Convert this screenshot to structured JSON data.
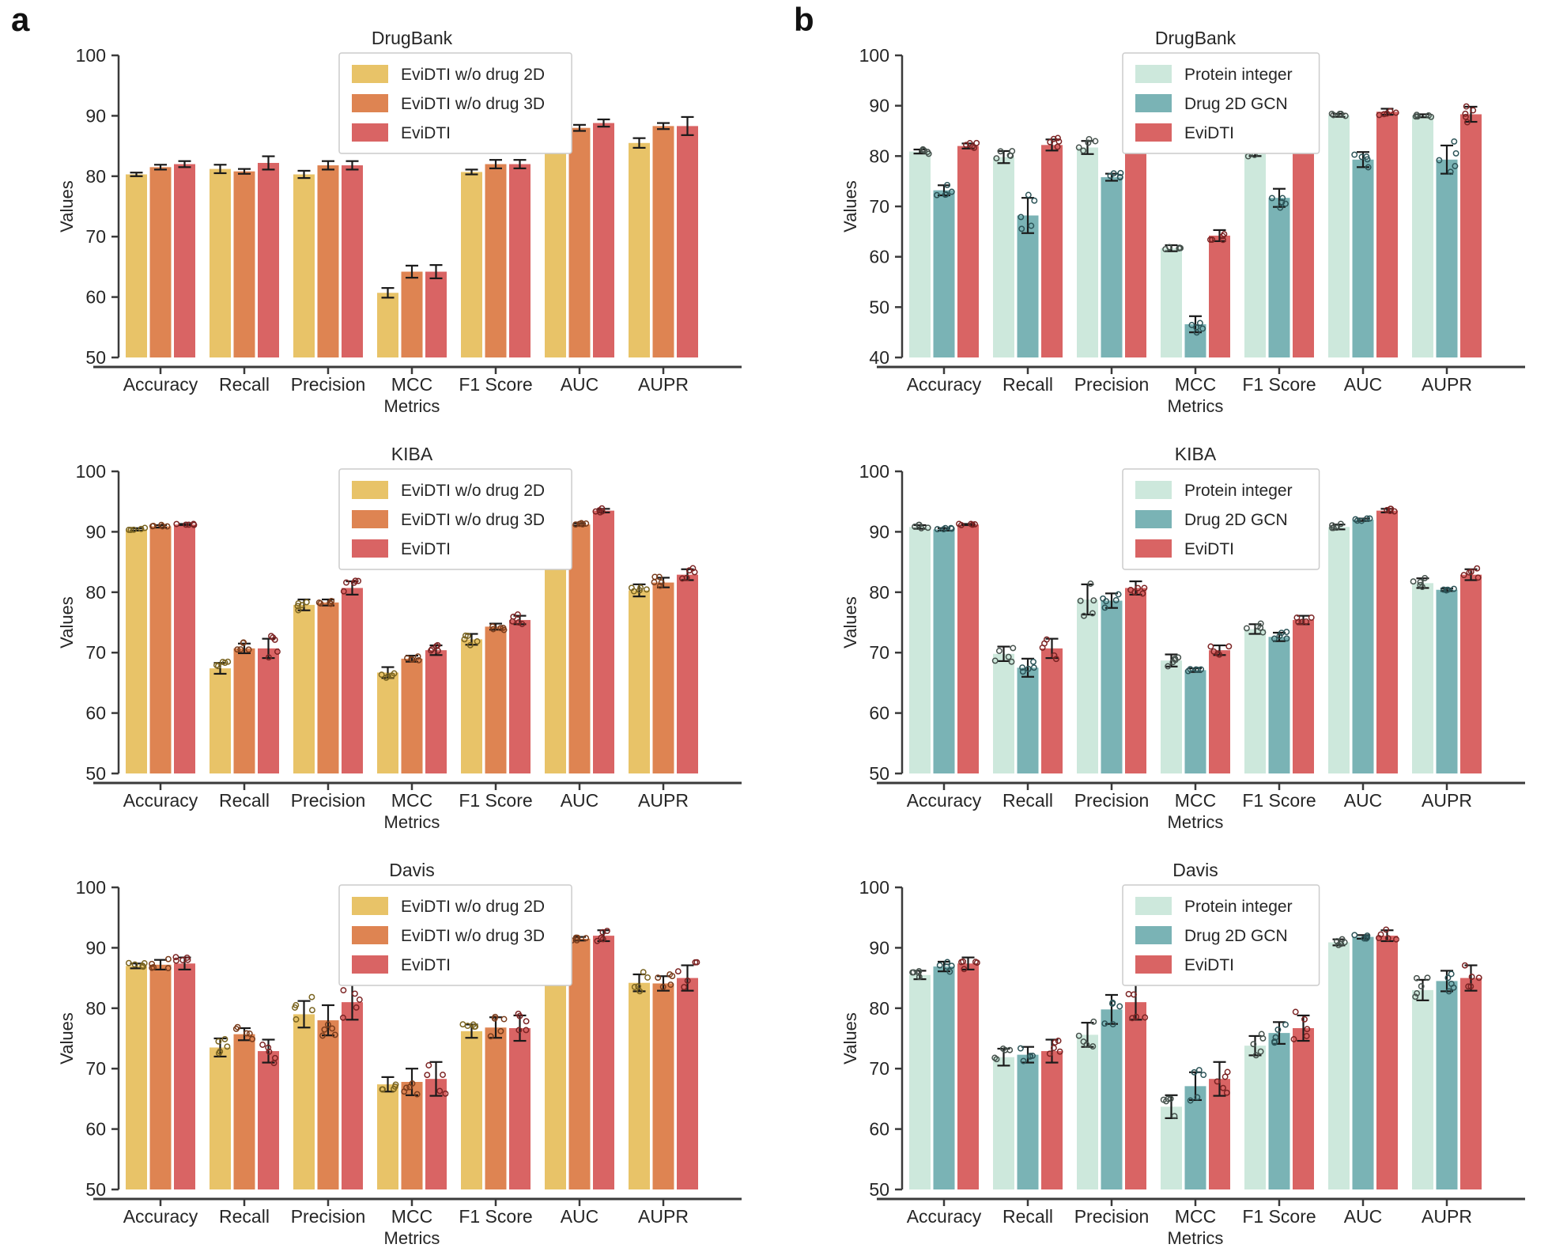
{
  "panels": [
    {
      "label": "a"
    },
    {
      "label": "b"
    }
  ],
  "colors": {
    "background": "#ffffff",
    "axis": "#3a3a3a",
    "errorbar": "#1a1a1a",
    "legend_border": "#cccccc",
    "text": "#262626",
    "panel_a_series": [
      "#E8C368",
      "#DE8452",
      "#D96464"
    ],
    "panel_b_series": [
      "#CDE8DC",
      "#7AB3B5",
      "#D96464"
    ]
  },
  "chart_data": [
    {
      "id": "a-drugbank",
      "panel": "a",
      "type": "bar",
      "title": "DrugBank",
      "xlabel": "Metrics",
      "ylabel": "Values",
      "ylim": [
        50,
        100
      ],
      "yticks": [
        50,
        60,
        70,
        80,
        90,
        100
      ],
      "grid": false,
      "legend_position": "upper center",
      "show_points": false,
      "categories": [
        "Accuracy",
        "Recall",
        "Precision",
        "MCC",
        "F1 Score",
        "AUC",
        "AUPR"
      ],
      "series": [
        {
          "name": "EviDTI w/o drug 2D",
          "color": "#E8C368",
          "point_color": "#7a6420",
          "values": [
            80.3,
            81.2,
            80.3,
            60.7,
            80.7,
            86.8,
            85.5
          ],
          "errors": [
            0.3,
            0.7,
            0.6,
            0.8,
            0.4,
            0.5,
            0.8
          ]
        },
        {
          "name": "EviDTI w/o drug 3D",
          "color": "#DE8452",
          "point_color": "#7a3d1d",
          "values": [
            81.5,
            80.8,
            81.8,
            64.2,
            82.0,
            88.0,
            88.3
          ],
          "errors": [
            0.4,
            0.4,
            0.7,
            1.0,
            0.7,
            0.5,
            0.5
          ]
        },
        {
          "name": "EviDTI",
          "color": "#D96464",
          "point_color": "#7c2424",
          "values": [
            82.0,
            82.2,
            81.8,
            64.2,
            82.0,
            88.8,
            88.3
          ],
          "errors": [
            0.5,
            1.1,
            0.7,
            1.1,
            0.7,
            0.6,
            1.5
          ]
        }
      ]
    },
    {
      "id": "b-drugbank",
      "panel": "b",
      "type": "bar",
      "title": "DrugBank",
      "xlabel": "Metrics",
      "ylabel": "Values",
      "ylim": [
        40,
        100
      ],
      "yticks": [
        40,
        50,
        60,
        70,
        80,
        90,
        100
      ],
      "grid": false,
      "legend_position": "upper center",
      "show_points": true,
      "categories": [
        "Accuracy",
        "Recall",
        "Precision",
        "MCC",
        "F1 Score",
        "AUC",
        "AUPR"
      ],
      "series": [
        {
          "name": "Protein integer",
          "color": "#CDE8DC",
          "point_color": "#46524d",
          "values": [
            80.9,
            79.8,
            81.7,
            61.7,
            80.7,
            88.1,
            88.0
          ],
          "errors": [
            0.4,
            1.2,
            1.3,
            0.6,
            0.7,
            0.3,
            0.3
          ]
        },
        {
          "name": "Drug 2D GCN",
          "color": "#7AB3B5",
          "point_color": "#2c5458",
          "values": [
            73.2,
            68.2,
            75.8,
            46.6,
            71.7,
            79.3,
            79.3
          ],
          "errors": [
            1.0,
            3.5,
            0.7,
            1.6,
            1.8,
            1.5,
            2.8
          ]
        },
        {
          "name": "EviDTI",
          "color": "#D96464",
          "point_color": "#7c2424",
          "values": [
            82.0,
            82.2,
            81.9,
            64.2,
            82.0,
            88.8,
            88.3
          ],
          "errors": [
            0.5,
            1.1,
            0.8,
            1.1,
            0.8,
            0.6,
            1.5
          ]
        }
      ]
    },
    {
      "id": "a-kiba",
      "panel": "a",
      "type": "bar",
      "title": "KIBA",
      "xlabel": "Metrics",
      "ylabel": "Values",
      "ylim": [
        50,
        100
      ],
      "yticks": [
        50,
        60,
        70,
        80,
        90,
        100
      ],
      "grid": false,
      "legend_position": "upper center",
      "show_points": true,
      "categories": [
        "Accuracy",
        "Recall",
        "Precision",
        "MCC",
        "F1 Score",
        "AUC",
        "AUPR"
      ],
      "series": [
        {
          "name": "EviDTI w/o drug 2D",
          "color": "#E8C368",
          "point_color": "#7a6420",
          "values": [
            90.4,
            67.4,
            77.9,
            66.7,
            72.2,
            92.1,
            80.3
          ],
          "errors": [
            0.2,
            0.9,
            0.9,
            0.9,
            0.9,
            0.3,
            1.0
          ]
        },
        {
          "name": "EviDTI w/o drug 3D",
          "color": "#DE8452",
          "point_color": "#7a3d1d",
          "values": [
            90.9,
            70.7,
            78.3,
            69.0,
            74.3,
            91.2,
            81.6
          ],
          "errors": [
            0.2,
            0.8,
            0.5,
            0.5,
            0.5,
            0.2,
            0.8
          ]
        },
        {
          "name": "EviDTI",
          "color": "#D96464",
          "point_color": "#7c2424",
          "values": [
            91.2,
            70.7,
            80.7,
            70.4,
            75.4,
            93.5,
            82.9
          ],
          "errors": [
            0.1,
            1.6,
            1.1,
            0.8,
            0.7,
            0.3,
            0.9
          ]
        }
      ]
    },
    {
      "id": "b-kiba",
      "panel": "b",
      "type": "bar",
      "title": "KIBA",
      "xlabel": "Metrics",
      "ylabel": "Values",
      "ylim": [
        50,
        100
      ],
      "yticks": [
        50,
        60,
        70,
        80,
        90,
        100
      ],
      "grid": false,
      "legend_position": "upper center",
      "show_points": true,
      "categories": [
        "Accuracy",
        "Recall",
        "Precision",
        "MCC",
        "F1 Score",
        "AUC",
        "AUPR"
      ],
      "series": [
        {
          "name": "Protein integer",
          "color": "#CDE8DC",
          "point_color": "#46524d",
          "values": [
            90.8,
            69.8,
            78.8,
            68.7,
            73.9,
            90.8,
            81.5
          ],
          "errors": [
            0.3,
            1.2,
            2.5,
            1.0,
            0.8,
            0.4,
            0.8
          ]
        },
        {
          "name": "Drug 2D GCN",
          "color": "#7AB3B5",
          "point_color": "#2c5458",
          "values": [
            90.4,
            67.5,
            78.6,
            67.1,
            72.6,
            92.0,
            80.4
          ],
          "errors": [
            0.2,
            1.5,
            1.2,
            0.3,
            0.7,
            0.2,
            0.2
          ]
        },
        {
          "name": "EviDTI",
          "color": "#D96464",
          "point_color": "#7c2424",
          "values": [
            91.2,
            70.7,
            80.7,
            70.4,
            75.4,
            93.5,
            82.9
          ],
          "errors": [
            0.1,
            1.6,
            1.1,
            0.8,
            0.7,
            0.3,
            0.9
          ]
        }
      ]
    },
    {
      "id": "a-davis",
      "panel": "a",
      "type": "bar",
      "title": "Davis",
      "xlabel": "Metrics",
      "ylabel": "Values",
      "ylim": [
        50,
        100
      ],
      "yticks": [
        50,
        60,
        70,
        80,
        90,
        100
      ],
      "grid": false,
      "legend_position": "upper center",
      "show_points": true,
      "categories": [
        "Accuracy",
        "Recall",
        "Precision",
        "MCC",
        "F1 Score",
        "AUC",
        "AUPR"
      ],
      "series": [
        {
          "name": "EviDTI w/o drug 2D",
          "color": "#E8C368",
          "point_color": "#7a6420",
          "values": [
            87.0,
            73.5,
            79.0,
            67.4,
            76.2,
            92.0,
            84.2
          ],
          "errors": [
            0.4,
            1.5,
            2.2,
            1.2,
            1.1,
            0.6,
            1.4
          ]
        },
        {
          "name": "EviDTI w/o drug 3D",
          "color": "#DE8452",
          "point_color": "#7a3d1d",
          "values": [
            87.2,
            75.7,
            78.0,
            67.8,
            76.8,
            91.5,
            84.1
          ],
          "errors": [
            0.8,
            1.0,
            2.5,
            2.2,
            1.7,
            0.3,
            1.2
          ]
        },
        {
          "name": "EviDTI",
          "color": "#D96464",
          "point_color": "#7c2424",
          "values": [
            87.4,
            72.9,
            81.0,
            68.3,
            76.7,
            92.0,
            85.0
          ],
          "errors": [
            1.0,
            1.9,
            2.9,
            2.8,
            2.1,
            0.9,
            2.1
          ]
        }
      ]
    },
    {
      "id": "b-davis",
      "panel": "b",
      "type": "bar",
      "title": "Davis",
      "xlabel": "Metrics",
      "ylabel": "Values",
      "ylim": [
        50,
        100
      ],
      "yticks": [
        50,
        60,
        70,
        80,
        90,
        100
      ],
      "grid": false,
      "legend_position": "upper center",
      "show_points": true,
      "categories": [
        "Accuracy",
        "Recall",
        "Precision",
        "MCC",
        "F1 Score",
        "AUC",
        "AUPR"
      ],
      "series": [
        {
          "name": "Protein integer",
          "color": "#CDE8DC",
          "point_color": "#46524d",
          "values": [
            85.5,
            71.9,
            75.6,
            63.7,
            73.8,
            90.9,
            83.0
          ],
          "errors": [
            0.7,
            1.4,
            2.0,
            1.9,
            1.6,
            0.5,
            1.7
          ]
        },
        {
          "name": "Drug 2D GCN",
          "color": "#7AB3B5",
          "point_color": "#2c5458",
          "values": [
            86.9,
            72.3,
            79.8,
            67.1,
            75.9,
            91.8,
            84.5
          ],
          "errors": [
            0.8,
            1.3,
            2.4,
            2.3,
            1.8,
            0.3,
            1.7
          ]
        },
        {
          "name": "EviDTI",
          "color": "#D96464",
          "point_color": "#7c2424",
          "values": [
            87.4,
            72.9,
            81.0,
            68.3,
            76.7,
            92.0,
            85.0
          ],
          "errors": [
            1.0,
            1.9,
            2.9,
            2.8,
            2.1,
            0.9,
            2.1
          ]
        }
      ]
    }
  ]
}
